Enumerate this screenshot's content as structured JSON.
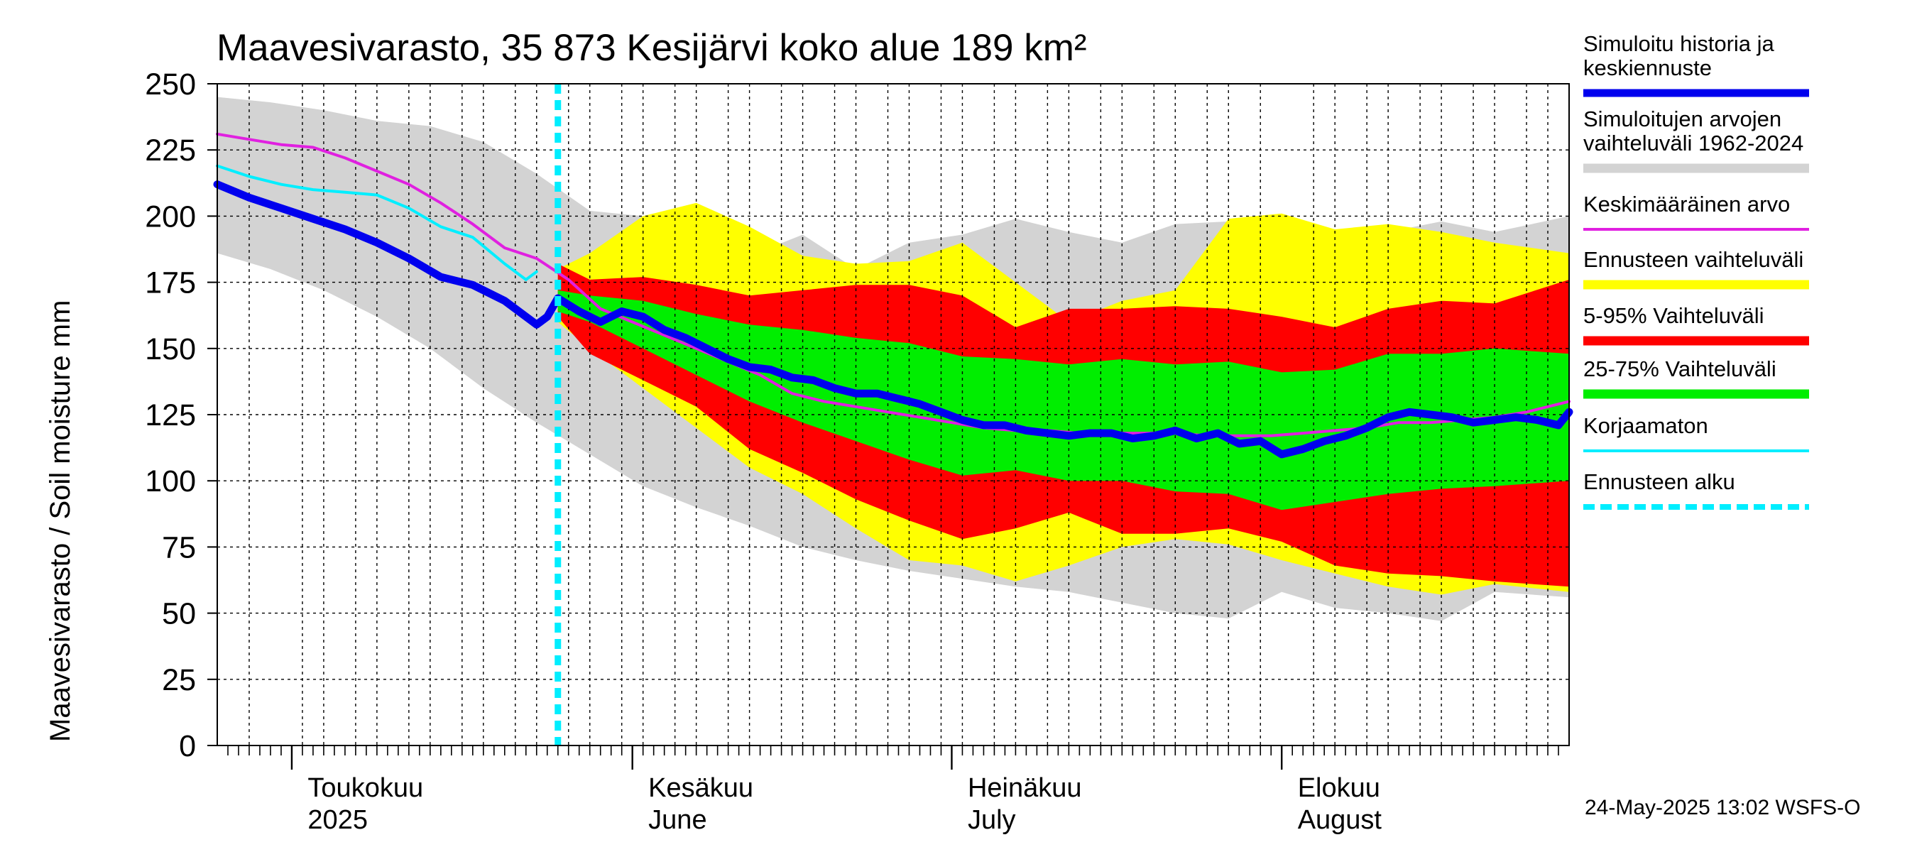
{
  "chart_data": {
    "type": "area",
    "title": "Maavesivarasto, 35 873 Kesijärvi koko alue 189 km²",
    "ylabel": "Maavesivarasto / Soil moisture   mm",
    "ylim": [
      0,
      250
    ],
    "yticks": [
      0,
      25,
      50,
      75,
      100,
      125,
      150,
      175,
      200,
      225,
      250
    ],
    "x_range_day": [
      0,
      127
    ],
    "grid": true,
    "forecast_start_day": 32,
    "months": [
      {
        "fi": "Toukokuu",
        "en": "2025",
        "start": 7,
        "label_day": 8.5
      },
      {
        "fi": "Kesäkuu",
        "en": "June",
        "start": 39,
        "label_day": 40.5
      },
      {
        "fi": "Heinäkuu",
        "en": "July",
        "start": 69,
        "label_day": 70.5
      },
      {
        "fi": "Elokuu",
        "en": "August",
        "start": 100,
        "label_day": 101.5
      }
    ],
    "legend": [
      {
        "label": "Simuloitu historia ja keskiennuste",
        "lines": [
          "Simuloitu historia ja",
          "keskiennuste"
        ],
        "color": "#0000ee",
        "style": "thick"
      },
      {
        "label": "Simuloitujen arvojen vaihteluväli 1962-2024",
        "lines": [
          "Simuloitujen arvojen",
          "vaihteluväli 1962-2024"
        ],
        "color": "#d3d3d3",
        "style": "band"
      },
      {
        "label": "Keskimääräinen arvo",
        "lines": [
          "Keskimääräinen arvo"
        ],
        "color": "#e020e0",
        "style": "line"
      },
      {
        "label": "Ennusteen vaihteluväli",
        "lines": [
          "Ennusteen vaihteluväli"
        ],
        "color": "#ffff00",
        "style": "band"
      },
      {
        "label": "5-95% Vaihteluväli",
        "lines": [
          "5-95% Vaihteluväli"
        ],
        "color": "#ff0000",
        "style": "band"
      },
      {
        "label": "25-75% Vaihteluväli",
        "lines": [
          "25-75% Vaihteluväli"
        ],
        "color": "#00ee00",
        "style": "band"
      },
      {
        "label": "Korjaamaton",
        "lines": [
          "Korjaamaton"
        ],
        "color": "#00eeff",
        "style": "line"
      },
      {
        "label": "Ennusteen alku",
        "lines": [
          "Ennusteen alku"
        ],
        "color": "#00eeff",
        "style": "dashed"
      }
    ],
    "series": [
      {
        "name": "Simuloitujen arvojen vaihteluväli 1962-2024",
        "kind": "band",
        "color": "#d3d3d3",
        "x": [
          0,
          5,
          10,
          15,
          20,
          25,
          30,
          35,
          40,
          45,
          50,
          55,
          60,
          65,
          70,
          75,
          80,
          85,
          90,
          95,
          100,
          105,
          110,
          115,
          120,
          127
        ],
        "lower": [
          186,
          180,
          172,
          162,
          150,
          135,
          122,
          110,
          98,
          90,
          83,
          75,
          70,
          66,
          63,
          60,
          58,
          54,
          50,
          48,
          58,
          52,
          50,
          47,
          58,
          56
        ],
        "upper": [
          245,
          243,
          240,
          236,
          234,
          228,
          216,
          202,
          200,
          192,
          185,
          193,
          180,
          190,
          193,
          199,
          194,
          190,
          197,
          198,
          196,
          195,
          194,
          198,
          194,
          200
        ]
      },
      {
        "name": "Ennusteen vaihteluväli",
        "kind": "band",
        "color": "#ffff00",
        "x": [
          32,
          35,
          40,
          45,
          50,
          55,
          60,
          65,
          70,
          75,
          80,
          85,
          90,
          95,
          100,
          105,
          110,
          115,
          120,
          127
        ],
        "lower": [
          160,
          150,
          135,
          120,
          105,
          95,
          82,
          70,
          68,
          62,
          68,
          75,
          78,
          76,
          70,
          65,
          60,
          57,
          61,
          58
        ],
        "upper": [
          180,
          186,
          200,
          205,
          196,
          185,
          182,
          183,
          190,
          175,
          160,
          168,
          172,
          199,
          201,
          195,
          197,
          194,
          190,
          186
        ]
      },
      {
        "name": "5-95% Vaihteluväli",
        "kind": "band",
        "color": "#ff0000",
        "x": [
          32,
          35,
          40,
          45,
          50,
          55,
          60,
          65,
          70,
          75,
          80,
          85,
          90,
          95,
          100,
          105,
          110,
          115,
          120,
          127
        ],
        "lower": [
          162,
          148,
          138,
          128,
          112,
          103,
          93,
          85,
          78,
          82,
          88,
          80,
          80,
          82,
          77,
          68,
          65,
          64,
          62,
          60
        ],
        "upper": [
          182,
          176,
          177,
          174,
          170,
          172,
          174,
          174,
          170,
          158,
          165,
          165,
          166,
          165,
          162,
          158,
          165,
          168,
          167,
          176
        ]
      },
      {
        "name": "25-75% Vaihteluväli",
        "kind": "band",
        "color": "#00ee00",
        "x": [
          32,
          35,
          40,
          45,
          50,
          55,
          60,
          65,
          70,
          75,
          80,
          85,
          90,
          95,
          100,
          105,
          110,
          115,
          120,
          127
        ],
        "lower": [
          164,
          160,
          150,
          140,
          130,
          122,
          115,
          108,
          102,
          104,
          100,
          100,
          96,
          95,
          89,
          92,
          95,
          97,
          98,
          100
        ],
        "upper": [
          172,
          170,
          168,
          163,
          159,
          157,
          154,
          152,
          147,
          146,
          144,
          146,
          144,
          145,
          141,
          142,
          148,
          148,
          150,
          148
        ]
      },
      {
        "name": "Keskimääräinen arvo",
        "kind": "line",
        "color": "#e020e0",
        "x": [
          0,
          3,
          6,
          9,
          12,
          15,
          18,
          21,
          24,
          27,
          30,
          33,
          36,
          39,
          42,
          45,
          48,
          51,
          54,
          57,
          60,
          63,
          66,
          69,
          72,
          75,
          78,
          81,
          84,
          87,
          90,
          93,
          96,
          99,
          102,
          105,
          108,
          111,
          114,
          117,
          120,
          123,
          127
        ],
        "y": [
          231,
          229,
          227,
          226,
          222,
          217,
          212,
          205,
          197,
          188,
          184,
          176,
          165,
          160,
          155,
          150,
          145,
          140,
          133,
          130,
          128,
          126,
          124,
          122,
          120,
          119,
          119,
          118,
          118,
          118,
          118,
          117,
          117,
          117,
          118,
          119,
          120,
          122,
          122,
          123,
          124,
          126,
          130
        ]
      },
      {
        "name": "Korjaamaton",
        "kind": "line",
        "color": "#00eeff",
        "x": [
          0,
          3,
          6,
          9,
          12,
          15,
          18,
          21,
          24,
          27,
          29,
          30
        ],
        "y": [
          219,
          215,
          212,
          210,
          209,
          208,
          203,
          196,
          192,
          182,
          176,
          179
        ]
      },
      {
        "name": "Simuloitu historia ja keskiennuste",
        "kind": "line",
        "color": "#0000ee",
        "x": [
          0,
          3,
          6,
          9,
          12,
          15,
          18,
          21,
          24,
          27,
          30,
          31,
          32,
          34,
          36,
          38,
          40,
          42,
          44,
          46,
          48,
          50,
          52,
          54,
          56,
          58,
          60,
          62,
          64,
          66,
          68,
          70,
          72,
          74,
          76,
          78,
          80,
          82,
          84,
          86,
          88,
          90,
          92,
          94,
          96,
          98,
          100,
          102,
          104,
          106,
          108,
          110,
          112,
          114,
          116,
          118,
          120,
          122,
          124,
          126,
          127
        ],
        "y": [
          212,
          207,
          203,
          199,
          195,
          190,
          184,
          177,
          174,
          168,
          159,
          162,
          169,
          164,
          160,
          164,
          162,
          157,
          154,
          150,
          146,
          143,
          142,
          139,
          138,
          135,
          133,
          133,
          131,
          129,
          126,
          123,
          121,
          121,
          119,
          118,
          117,
          118,
          118,
          116,
          117,
          119,
          116,
          118,
          114,
          115,
          110,
          112,
          115,
          117,
          120,
          124,
          126,
          125,
          124,
          122,
          123,
          124,
          123,
          121,
          126
        ]
      }
    ]
  },
  "footer": {
    "timestamp": "24-May-2025 13:02 WSFS-O"
  }
}
